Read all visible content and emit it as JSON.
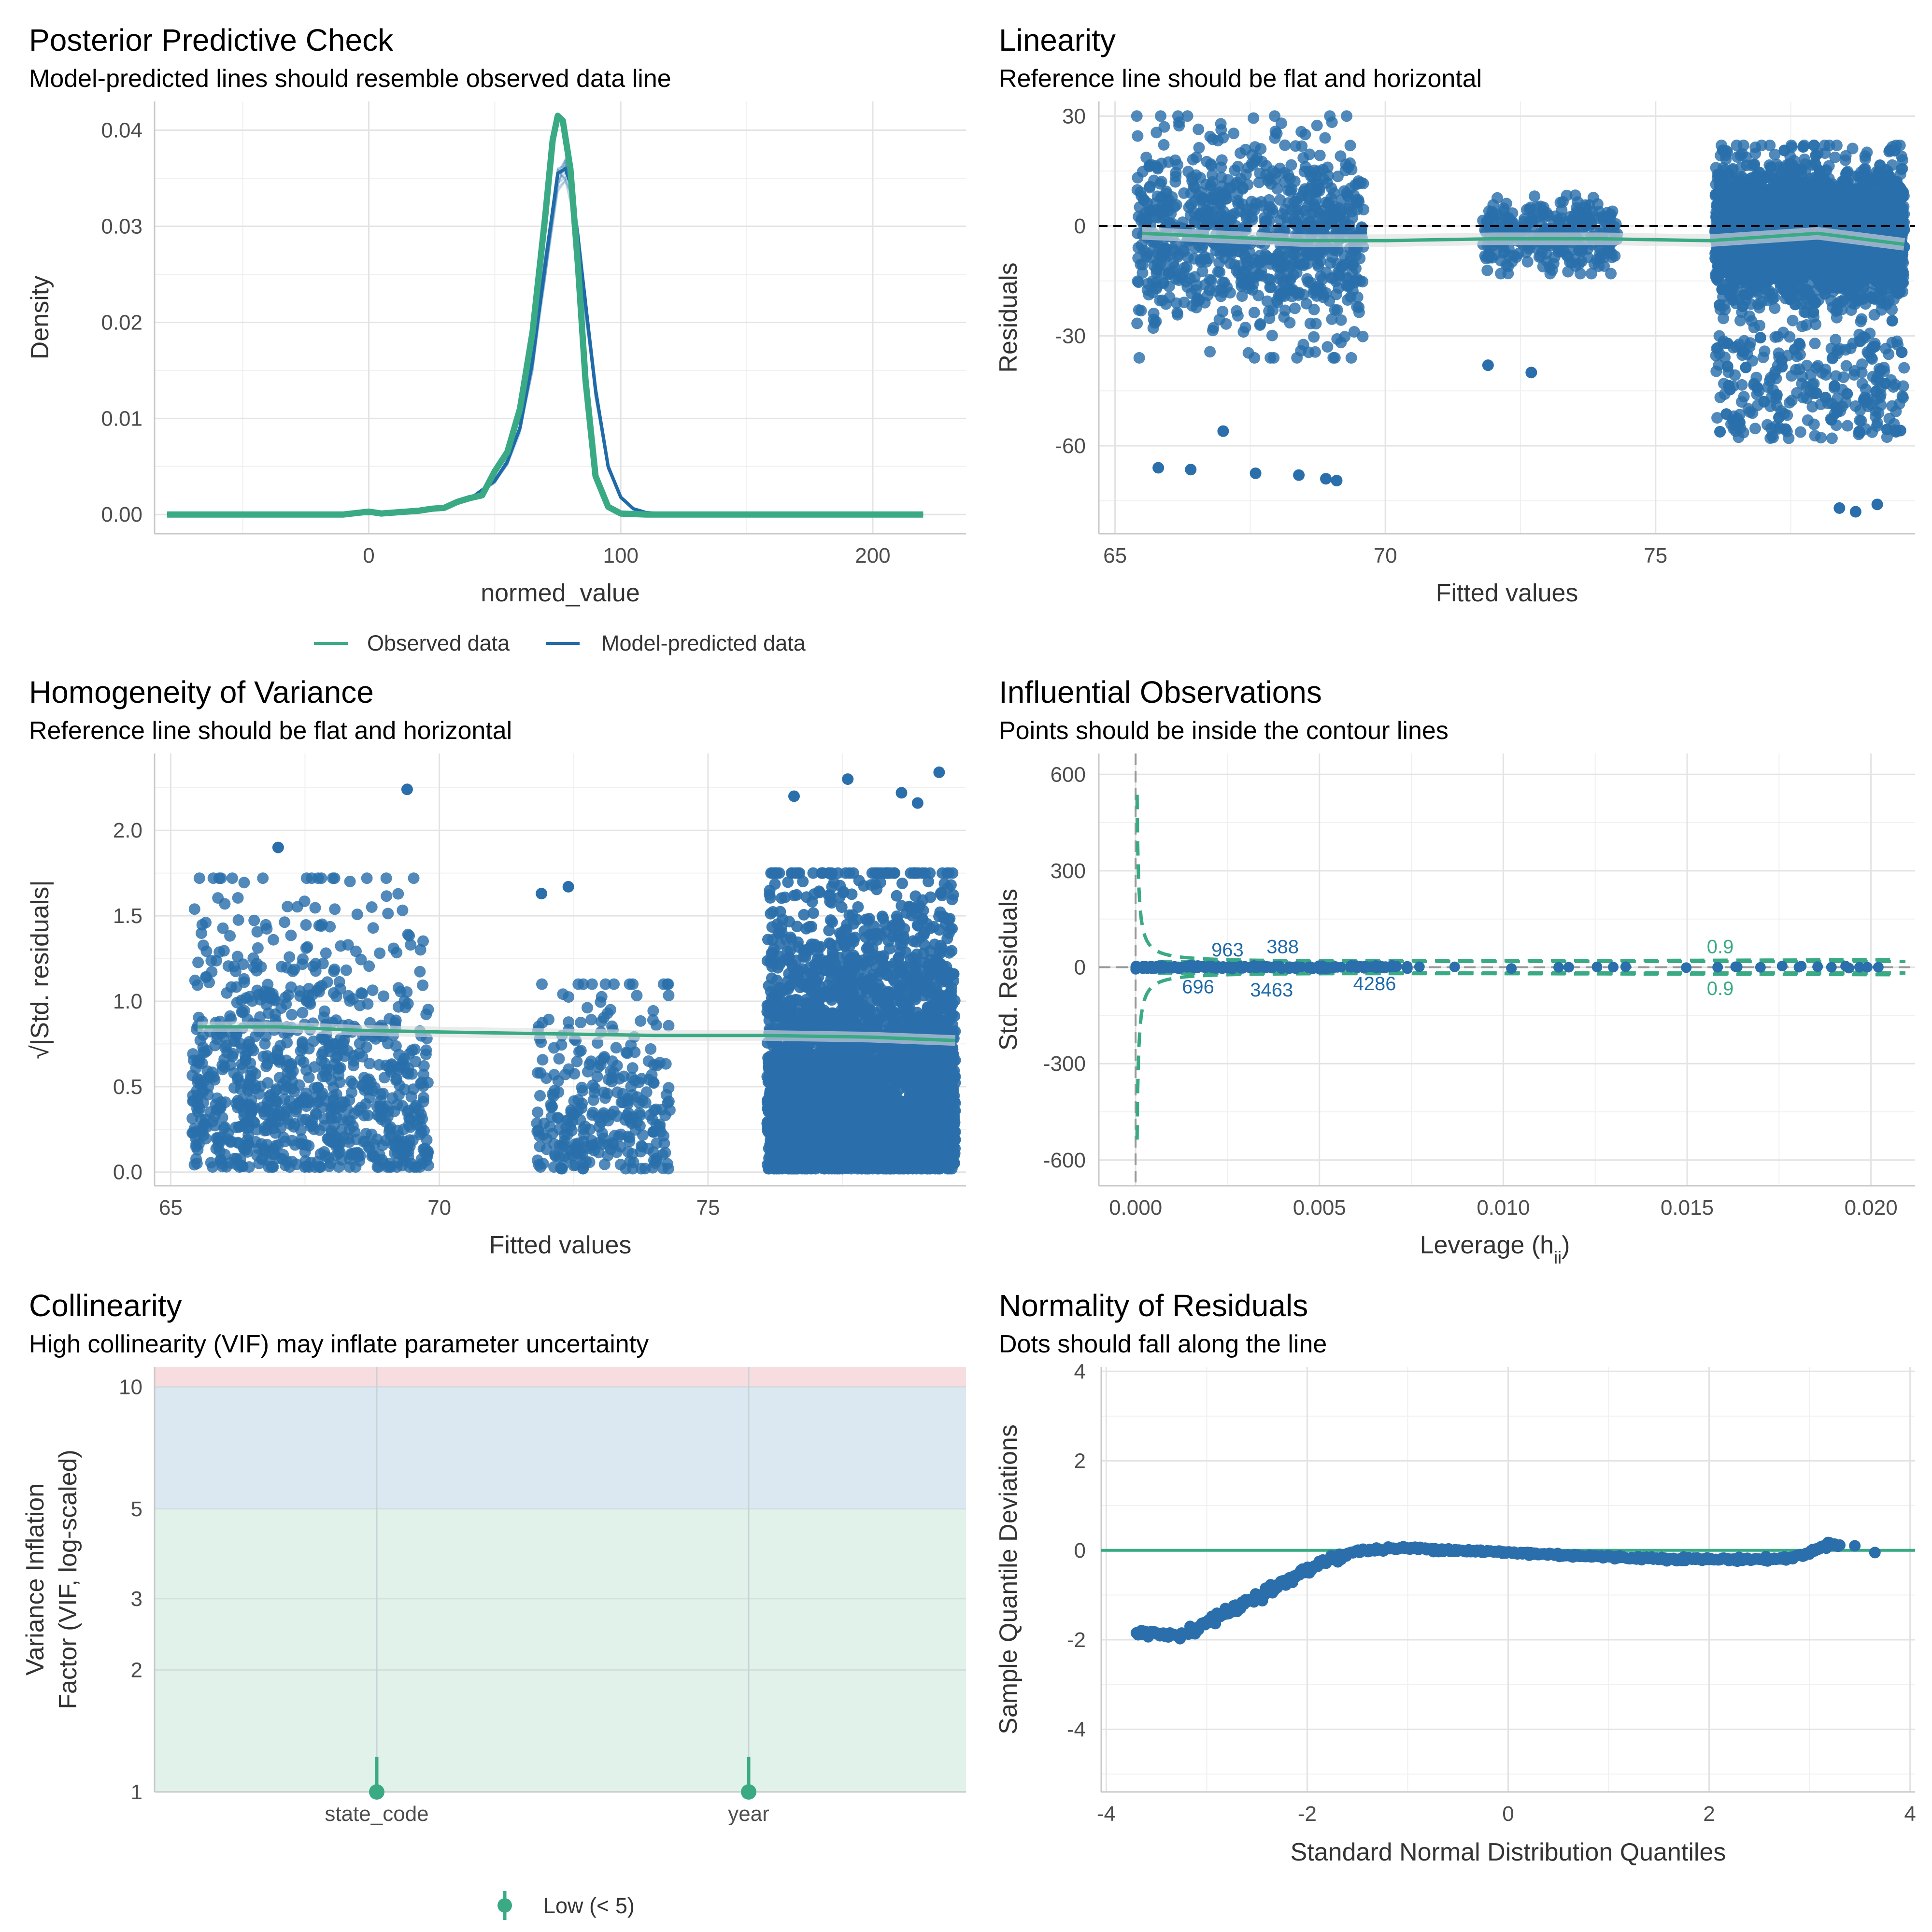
{
  "colors": {
    "green": "#3aaa85",
    "blue": "#1f6aa9",
    "blue_pt": "#2a6fab",
    "red_band": "#f8dde0",
    "blue_band": "#dce8f1",
    "green_band": "#e1f2ea"
  },
  "chart_data": [
    {
      "id": "ppc",
      "type": "line",
      "title": "Posterior Predictive Check",
      "subtitle": "Model-predicted lines should resemble observed data line",
      "xlabel": "normed_value",
      "ylabel": "Density",
      "xlim": [
        -85,
        237
      ],
      "ylim": [
        -0.002,
        0.043
      ],
      "xticks": [
        "0",
        "100",
        "200"
      ],
      "yticks": [
        "0.00",
        "0.01",
        "0.02",
        "0.03",
        "0.04"
      ],
      "legend_position": "bottom",
      "series": [
        {
          "name": "Observed data",
          "x": [
            -80,
            -10,
            0,
            5,
            10,
            20,
            25,
            30,
            35,
            40,
            45,
            50,
            55,
            60,
            65,
            70,
            73,
            75,
            77,
            80,
            83,
            86,
            90,
            95,
            100,
            110,
            130,
            220
          ],
          "y": [
            0,
            0,
            0.0003,
            0.0001,
            0.0002,
            0.0004,
            0.0006,
            0.0007,
            0.0013,
            0.0017,
            0.002,
            0.0045,
            0.0065,
            0.011,
            0.019,
            0.031,
            0.039,
            0.0415,
            0.041,
            0.036,
            0.026,
            0.014,
            0.004,
            0.0008,
            0.0001,
            0,
            0,
            0
          ]
        },
        {
          "name": "Model-predicted data",
          "x": [
            -80,
            0,
            20,
            30,
            40,
            50,
            55,
            60,
            65,
            70,
            75,
            78,
            80,
            83,
            86,
            90,
            95,
            100,
            105,
            110,
            120,
            220
          ],
          "y": [
            0,
            0.0001,
            0.0003,
            0.0007,
            0.0016,
            0.0035,
            0.0055,
            0.009,
            0.016,
            0.026,
            0.0355,
            0.036,
            0.0345,
            0.029,
            0.022,
            0.013,
            0.005,
            0.0018,
            0.0006,
            0.0002,
            0,
            0
          ]
        }
      ]
    },
    {
      "id": "linearity",
      "type": "scatter",
      "title": "Linearity",
      "subtitle": "Reference line should be flat and horizontal",
      "xlabel": "Fitted values",
      "ylabel": "Residuals",
      "xlim": [
        64.7,
        79.8
      ],
      "ylim": [
        -84,
        34
      ],
      "xticks": [
        "65",
        "70",
        "75"
      ],
      "yticks": [
        "30",
        "0",
        "-30",
        "-60"
      ],
      "clusters": [
        {
          "x": [
            65.4,
            69.6
          ],
          "resid_range": [
            -36,
            30
          ],
          "n": 900
        },
        {
          "x": [
            71.8,
            74.3
          ],
          "resid_range": [
            -13,
            12
          ],
          "n": 300
        },
        {
          "x": [
            76.1,
            79.6
          ],
          "resid_range": [
            -60,
            22
          ],
          "n": 3500
        }
      ],
      "outliers": [
        [
          65.8,
          -66
        ],
        [
          66.4,
          -66.5
        ],
        [
          67,
          -56
        ],
        [
          67.6,
          -67.5
        ],
        [
          68.4,
          -68
        ],
        [
          68.9,
          -69
        ],
        [
          69.1,
          -69.5
        ],
        [
          71.9,
          -38
        ],
        [
          72.7,
          -40
        ],
        [
          78.4,
          -77
        ],
        [
          78.7,
          -78
        ],
        [
          79.1,
          -76
        ]
      ],
      "smooth": {
        "x": [
          65.5,
          67,
          68.5,
          70,
          72,
          74,
          76,
          78,
          79.6
        ],
        "y": [
          -2,
          -3,
          -4,
          -4,
          -3.5,
          -3.5,
          -4,
          -2,
          -5
        ]
      }
    },
    {
      "id": "homogeneity",
      "type": "scatter",
      "title": "Homogeneity of Variance",
      "subtitle": "Reference line should be flat and horizontal",
      "xlabel": "Fitted values",
      "ylabel": "√|Std. residuals|",
      "xlim": [
        64.7,
        79.8
      ],
      "ylim": [
        -0.08,
        2.45
      ],
      "xticks": [
        "65",
        "70",
        "75"
      ],
      "yticks": [
        "0.0",
        "0.5",
        "1.0",
        "1.5",
        "2.0"
      ],
      "clusters": [
        {
          "x": [
            65.4,
            69.8
          ],
          "y_range": [
            0.03,
            1.72
          ],
          "n": 900
        },
        {
          "x": [
            71.8,
            74.3
          ],
          "y_range": [
            0.02,
            1.1
          ],
          "n": 300
        },
        {
          "x": [
            76.1,
            79.6
          ],
          "y_range": [
            0.02,
            1.75
          ],
          "n": 3500
        }
      ],
      "outliers": [
        [
          67,
          1.9
        ],
        [
          69.4,
          2.24
        ],
        [
          71.9,
          1.63
        ],
        [
          72.4,
          1.67
        ],
        [
          77.6,
          2.3
        ],
        [
          78.6,
          2.22
        ],
        [
          79.3,
          2.34
        ],
        [
          76.6,
          2.2
        ],
        [
          78.9,
          2.16
        ]
      ],
      "smooth": {
        "x": [
          65.5,
          67,
          68.5,
          70,
          72,
          74,
          76,
          78,
          79.6
        ],
        "y": [
          0.85,
          0.85,
          0.83,
          0.82,
          0.81,
          0.8,
          0.8,
          0.79,
          0.77
        ]
      }
    },
    {
      "id": "influential",
      "type": "scatter",
      "title": "Influential Observations",
      "subtitle": "Points should be inside the contour lines",
      "xlabel": "Leverage (h",
      "xlabel_sub": "ii",
      "xlabel_end": ")",
      "ylabel": "Std. Residuals",
      "xlim": [
        -0.001,
        0.0212
      ],
      "ylim": [
        -680,
        665
      ],
      "xticks": [
        "0.000",
        "0.005",
        "0.010",
        "0.015",
        "0.020"
      ],
      "yticks": [
        "600",
        "300",
        "0",
        "-300",
        "-600"
      ],
      "contour_label": "0.9",
      "point_labels": [
        {
          "text": "963",
          "x": 0.0025,
          "y": 55
        },
        {
          "text": "388",
          "x": 0.004,
          "y": 65
        },
        {
          "text": "696",
          "x": 0.0017,
          "y": -60
        },
        {
          "text": "3463",
          "x": 0.0037,
          "y": -70
        },
        {
          "text": "4286",
          "x": 0.0065,
          "y": -50
        }
      ]
    },
    {
      "id": "collinearity",
      "type": "scatter",
      "title": "Collinearity",
      "subtitle": "High collinearity (VIF) may inflate parameter uncertainty",
      "xlabel": "",
      "ylabel": "Variance Inflation Factor (VIF, log-scaled)",
      "ylabel_lines": [
        "Variance Inflation",
        "Factor (VIF, log-scaled)"
      ],
      "y_scale": "log",
      "ylim": [
        1,
        11.2
      ],
      "yticks": [
        "1",
        "2",
        "3",
        "5",
        "10"
      ],
      "categories": [
        "state_code",
        "year"
      ],
      "values": [
        1.0,
        1.0
      ],
      "upper_ci": [
        1.22,
        1.22
      ],
      "bands": [
        {
          "range": [
            1,
            5
          ],
          "name": "low"
        },
        {
          "range": [
            5,
            10
          ],
          "name": "moderate"
        },
        {
          "range": [
            10,
            11.2
          ],
          "name": "high"
        }
      ],
      "legend": [
        "Low (< 5)"
      ]
    },
    {
      "id": "normality",
      "type": "scatter",
      "title": "Normality of Residuals",
      "subtitle": "Dots should fall along the line",
      "xlabel": "Standard Normal Distribution Quantiles",
      "ylabel": "Sample Quantile Deviations",
      "xlim": [
        -4.05,
        4.05
      ],
      "ylim": [
        -5.4,
        4.1
      ],
      "xticks": [
        "-4",
        "-2",
        "0",
        "2",
        "4"
      ],
      "yticks": [
        "4",
        "2",
        "0",
        "-2",
        "-4"
      ],
      "curve": {
        "x": [
          -3.7,
          -3.4,
          -3.2,
          -3.0,
          -2.8,
          -2.6,
          -2.4,
          -2.2,
          -2.0,
          -1.8,
          -1.5,
          -1.2,
          -1.0,
          -0.5,
          0,
          0.5,
          1,
          1.5,
          2,
          2.5,
          2.8,
          3.0,
          3.1,
          3.2,
          3.3
        ],
        "y": [
          -1.8,
          -1.9,
          -1.85,
          -1.6,
          -1.4,
          -1.15,
          -0.9,
          -0.7,
          -0.45,
          -0.2,
          -0.02,
          0.03,
          0.05,
          0.0,
          -0.05,
          -0.1,
          -0.15,
          -0.18,
          -0.2,
          -0.2,
          -0.18,
          -0.05,
          0.05,
          0.15,
          0.12
        ]
      },
      "outliers": [
        [
          3.45,
          0.1
        ],
        [
          3.65,
          -0.05
        ]
      ]
    }
  ]
}
